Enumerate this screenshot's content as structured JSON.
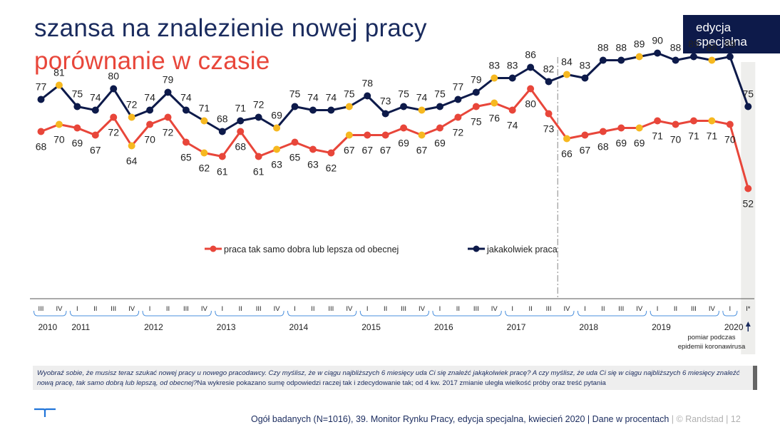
{
  "header": {
    "title": "szansa na znalezienie nowej pracy",
    "subtitle": "porównanie w czasie",
    "badge_line1": "edycja",
    "badge_line2": "specjalna"
  },
  "colors": {
    "navy": "#0d1a4a",
    "red": "#e8463a",
    "yellow": "#f6b820",
    "accent_title": "#1a2b5e"
  },
  "chart_data": {
    "type": "line",
    "series": [
      {
        "name": "jakakolwiek praca",
        "color": "#0d1a4a",
        "values": [
          77,
          81,
          75,
          74,
          80,
          72,
          74,
          79,
          74,
          71,
          68,
          71,
          72,
          69,
          75,
          74,
          74,
          75,
          78,
          73,
          75,
          74,
          75,
          77,
          79,
          83,
          83,
          86,
          82,
          84,
          83,
          88,
          88,
          89,
          90,
          88,
          89,
          88,
          89,
          75
        ]
      },
      {
        "name": "praca tak samo dobra lub lepsza od obecnej",
        "color": "#e8463a",
        "values": [
          68,
          70,
          69,
          67,
          72,
          64,
          70,
          72,
          65,
          62,
          61,
          68,
          61,
          63,
          65,
          63,
          62,
          67,
          67,
          67,
          69,
          67,
          69,
          72,
          75,
          76,
          74,
          80,
          73,
          66,
          67,
          68,
          69,
          69,
          71,
          70,
          71,
          71,
          70,
          52
        ]
      }
    ],
    "highlight_points": [
      1,
      5,
      9,
      13,
      17,
      21,
      25,
      29,
      33,
      37
    ],
    "quarters": [
      "III",
      "IV",
      "I",
      "II",
      "III",
      "IV",
      "I",
      "II",
      "III",
      "IV",
      "I",
      "II",
      "III",
      "IV",
      "I",
      "II",
      "III",
      "IV",
      "I",
      "II",
      "III",
      "IV",
      "I",
      "II",
      "III",
      "IV",
      "I",
      "II",
      "III",
      "IV",
      "I",
      "II",
      "III",
      "IV",
      "I",
      "II",
      "III",
      "IV",
      "I",
      "I*"
    ],
    "years": [
      {
        "label": "2010",
        "start": 0,
        "end": 1
      },
      {
        "label": "2011",
        "start": 2,
        "end": 5
      },
      {
        "label": "2012",
        "start": 6,
        "end": 9
      },
      {
        "label": "2013",
        "start": 10,
        "end": 13
      },
      {
        "label": "2014",
        "start": 14,
        "end": 17
      },
      {
        "label": "2015",
        "start": 18,
        "end": 21
      },
      {
        "label": "2016",
        "start": 22,
        "end": 25
      },
      {
        "label": "2017",
        "start": 26,
        "end": 29
      },
      {
        "label": "2018",
        "start": 30,
        "end": 33
      },
      {
        "label": "2019",
        "start": 34,
        "end": 37
      },
      {
        "label": "2020",
        "start": 38,
        "end": 38
      }
    ],
    "annotation_line1": "pomiar podczas",
    "annotation_line2": "epidemii koronawirusa",
    "legend": [
      "praca tak samo dobra lub lepsza od obecnej",
      "jakakolwiek praca"
    ]
  },
  "note": {
    "question": "Wyobraź sobie, że musisz teraz szukać nowej pracy u nowego pracodawcy. Czy myślisz, że w ciągu najbliższych 6 miesięcy uda Ci się znaleźć jakąkolwiek pracę? A czy myślisz, że uda Ci się w ciągu najbliższych 6 miesięcy znaleźć nową pracę, tak samo dobrą lub lepszą, od obecnej?",
    "explanation": "Na  wykresie pokazano sumę odpowiedzi raczej tak i zdecydowanie tak; od 4 kw. 2017 zmianie uległa wielkość próby oraz treść pytania"
  },
  "footer": {
    "text": "Ogół badanych (N=1016), 39. Monitor Rynku Pracy, edycja specjalna, kwiecień 2020 | Dane w procentach",
    "brand": " | © Randstad  |   12"
  }
}
